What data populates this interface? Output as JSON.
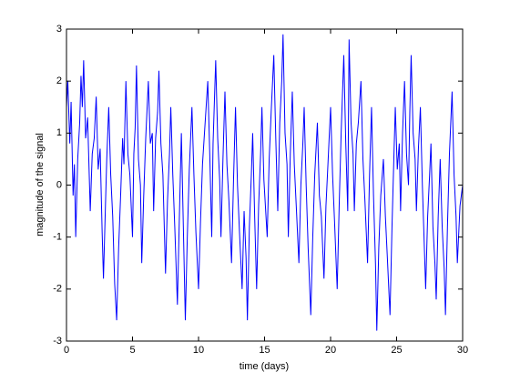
{
  "chart_data": {
    "type": "line",
    "xlabel": "time (days)",
    "ylabel": "magnitude of the signal",
    "color": "#0000ff",
    "xlim": [
      0,
      30
    ],
    "xticks": [
      0,
      5,
      10,
      15,
      20,
      25,
      30
    ],
    "ylim": [
      -3,
      3
    ],
    "yticks": [
      -3,
      -2,
      -1,
      0,
      1,
      2,
      3
    ],
    "grid": false,
    "x": [
      0,
      0.1,
      0.25,
      0.35,
      0.5,
      0.6,
      0.7,
      0.85,
      1.0,
      1.1,
      1.2,
      1.3,
      1.45,
      1.6,
      1.8,
      1.95,
      2.1,
      2.25,
      2.4,
      2.55,
      2.7,
      2.8,
      2.95,
      3.05,
      3.2,
      3.35,
      3.5,
      3.65,
      3.8,
      3.95,
      4.1,
      4.25,
      4.35,
      4.5,
      4.65,
      4.8,
      5.0,
      5.1,
      5.2,
      5.3,
      5.45,
      5.6,
      5.7,
      5.85,
      6.0,
      6.2,
      6.35,
      6.5,
      6.6,
      6.75,
      6.9,
      7.0,
      7.15,
      7.3,
      7.5,
      7.65,
      7.8,
      7.9,
      8.05,
      8.2,
      8.4,
      8.55,
      8.7,
      8.85,
      9.0,
      9.15,
      9.3,
      9.5,
      9.65,
      9.8,
      10.0,
      10.15,
      10.3,
      10.5,
      10.7,
      10.85,
      11.0,
      11.1,
      11.2,
      11.3,
      11.45,
      11.6,
      11.7,
      11.85,
      12.0,
      12.15,
      12.3,
      12.5,
      12.65,
      12.8,
      12.95,
      13.1,
      13.3,
      13.45,
      13.6,
      13.7,
      13.85,
      14.0,
      14.1,
      14.25,
      14.4,
      14.55,
      14.7,
      14.8,
      14.95,
      15.2,
      15.35,
      15.5,
      15.7,
      15.85,
      16.0,
      16.15,
      16.3,
      16.4,
      16.55,
      16.7,
      16.8,
      16.95,
      17.1,
      17.25,
      17.4,
      17.6,
      17.75,
      17.9,
      18.0,
      18.15,
      18.3,
      18.5,
      18.65,
      18.8,
      19.0,
      19.15,
      19.3,
      19.5,
      19.65,
      19.8,
      20.0,
      20.15,
      20.3,
      20.5,
      20.65,
      20.8,
      21.0,
      21.15,
      21.3,
      21.4,
      21.55,
      21.7,
      21.8,
      21.95,
      22.1,
      22.3,
      22.45,
      22.6,
      22.8,
      22.95,
      23.1,
      23.25,
      23.4,
      23.5,
      23.65,
      23.8,
      24.0,
      24.15,
      24.3,
      24.5,
      24.65,
      24.8,
      24.9,
      25.05,
      25.2,
      25.3,
      25.45,
      25.6,
      25.75,
      25.9,
      26.0,
      26.1,
      26.25,
      26.4,
      26.5,
      26.65,
      26.8,
      26.95,
      27.05,
      27.2,
      27.35,
      27.5,
      27.6,
      27.75,
      27.9,
      28.0,
      28.15,
      28.3,
      28.45,
      28.6,
      28.7,
      28.85,
      29.0,
      29.2,
      29.35,
      29.5,
      29.6,
      29.8,
      30.0
    ],
    "values": [
      1.5,
      2.0,
      0.8,
      1.6,
      -0.2,
      0.4,
      -1.0,
      0.5,
      1.2,
      2.1,
      1.5,
      2.4,
      0.9,
      1.3,
      -0.5,
      0.6,
      0.9,
      1.7,
      0.3,
      0.7,
      -0.9,
      -1.8,
      -0.4,
      0.5,
      1.5,
      0.2,
      -0.6,
      -1.9,
      -2.6,
      -1.2,
      -0.2,
      0.9,
      0.4,
      2.0,
      0.6,
      0.2,
      -1.0,
      0.6,
      1.1,
      2.3,
      0.5,
      0.0,
      -1.5,
      -0.2,
      0.9,
      2.0,
      0.8,
      1.0,
      -0.5,
      0.9,
      1.4,
      2.2,
      0.8,
      0.2,
      -1.7,
      -0.3,
      0.6,
      1.5,
      0.2,
      -0.8,
      -2.3,
      -0.6,
      1.0,
      -0.8,
      -2.6,
      -1.0,
      0.3,
      1.5,
      0.2,
      -0.9,
      -2.0,
      -0.7,
      0.4,
      1.2,
      2.0,
      0.6,
      -1.0,
      0.8,
      1.6,
      2.4,
      0.9,
      0.1,
      -1.0,
      0.5,
      1.8,
      0.4,
      -0.3,
      -1.5,
      0.1,
      1.5,
      0.0,
      -0.9,
      -2.0,
      -0.5,
      -1.4,
      -2.6,
      -0.8,
      0.2,
      1.0,
      -0.6,
      -2.0,
      -0.4,
      0.6,
      1.5,
      0.1,
      -1.0,
      0.5,
      1.4,
      2.5,
      0.9,
      -0.5,
      1.2,
      2.0,
      2.9,
      1.0,
      0.4,
      -1.0,
      0.6,
      1.8,
      0.4,
      -0.4,
      -1.5,
      0.0,
      0.8,
      1.5,
      0.0,
      -1.2,
      -2.5,
      -1.0,
      0.2,
      1.2,
      -0.2,
      -0.6,
      -1.8,
      -0.4,
      0.4,
      1.5,
      0.2,
      -0.7,
      -2.0,
      -0.4,
      1.0,
      2.5,
      0.8,
      -0.5,
      2.8,
      1.2,
      0.6,
      -0.5,
      0.8,
      1.2,
      2.0,
      0.5,
      -0.3,
      -1.5,
      0.2,
      1.5,
      -0.2,
      -1.5,
      -2.8,
      -1.2,
      -0.2,
      0.5,
      -0.6,
      -1.4,
      -2.5,
      -0.8,
      0.6,
      1.5,
      0.3,
      0.8,
      -0.5,
      1.0,
      2.0,
      0.6,
      0.0,
      1.4,
      2.5,
      1.0,
      0.5,
      -0.5,
      0.7,
      1.5,
      0.0,
      -0.8,
      -2.0,
      -0.6,
      0.2,
      0.8,
      -0.8,
      -1.5,
      -2.2,
      -0.6,
      0.5,
      -0.8,
      -1.6,
      -2.5,
      -0.8,
      0.6,
      1.8,
      0.2,
      -0.6,
      -1.5,
      -0.4,
      0.0
    ]
  }
}
